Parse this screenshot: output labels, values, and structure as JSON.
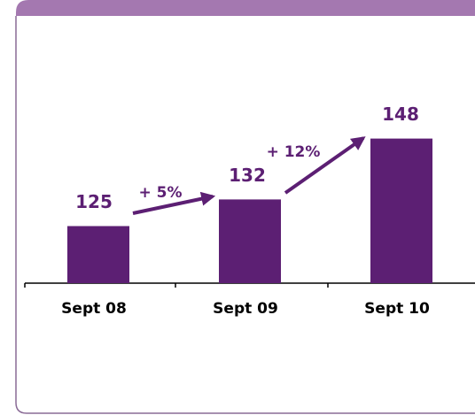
{
  "chart_data": {
    "type": "bar",
    "categories": [
      "Sept 08",
      "Sept 09",
      "Sept 10"
    ],
    "values": [
      125,
      132,
      148
    ],
    "color": "#5c1f73",
    "ylim": [
      110,
      160
    ],
    "annotations": [
      "+ 5%",
      "+ 12%"
    ]
  }
}
